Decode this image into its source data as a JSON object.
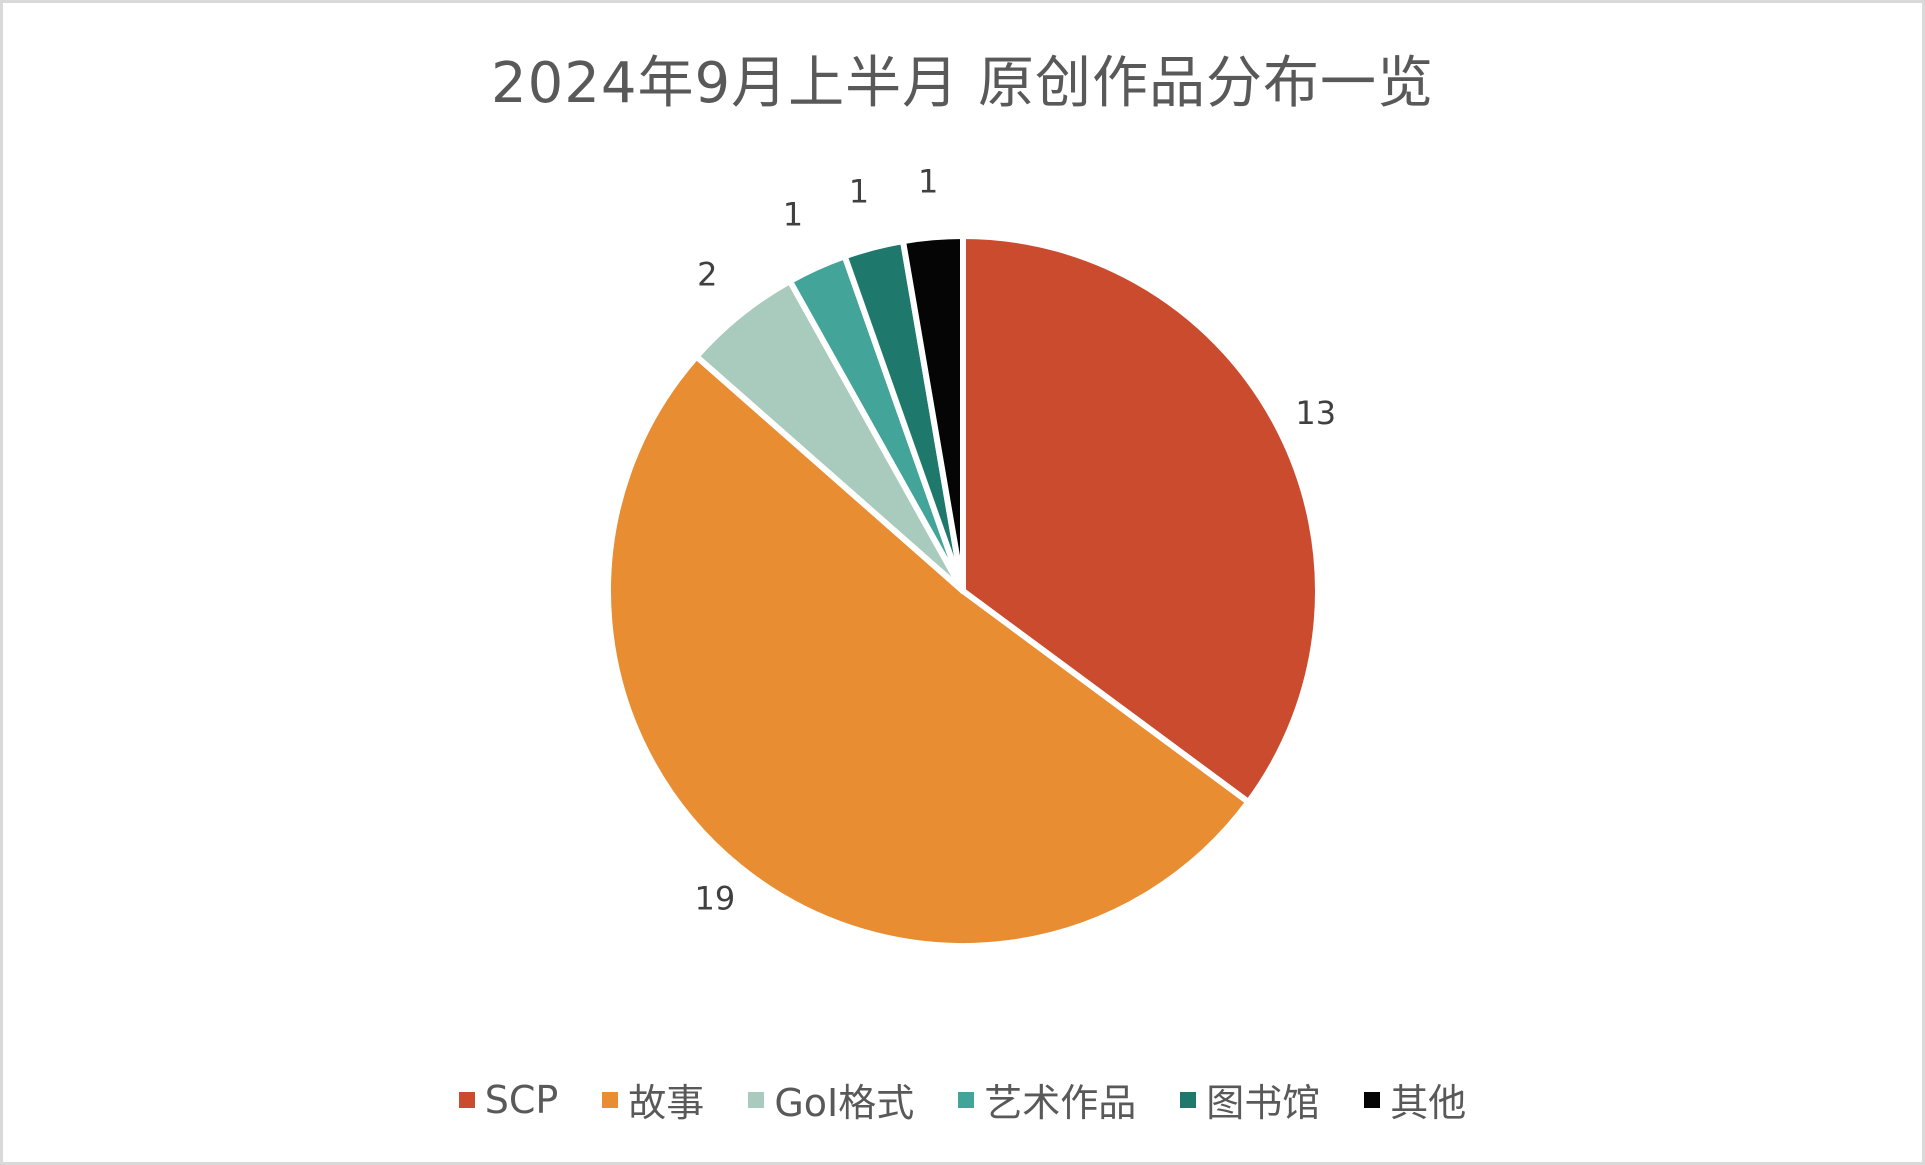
{
  "chart": {
    "title": "2024年9月上半月 原创作品分布一览"
  },
  "chart_data": {
    "type": "pie",
    "title": "2024年9月上半月 原创作品分布一览",
    "categories": [
      "SCP",
      "故事",
      "GoI格式",
      "艺术作品",
      "图书馆",
      "其他"
    ],
    "values": [
      13,
      19,
      2,
      1,
      1,
      1
    ],
    "colors": [
      "#CB4B2F",
      "#E88D31",
      "#A8CBBD",
      "#43A499",
      "#1F786C",
      "#050505"
    ],
    "data_labels": [
      "13",
      "19",
      "2",
      "1",
      "1",
      "1"
    ],
    "start_angle": "12 o'clock, clockwise",
    "legend_position": "bottom"
  },
  "legend": {
    "items": [
      {
        "label": "SCP",
        "color": "#CB4B2F"
      },
      {
        "label": "故事",
        "color": "#E88D31"
      },
      {
        "label": "GoI格式",
        "color": "#A8CBBD"
      },
      {
        "label": "艺术作品",
        "color": "#43A499"
      },
      {
        "label": "图书馆",
        "color": "#1F786C"
      },
      {
        "label": "其他",
        "color": "#050505"
      }
    ]
  }
}
